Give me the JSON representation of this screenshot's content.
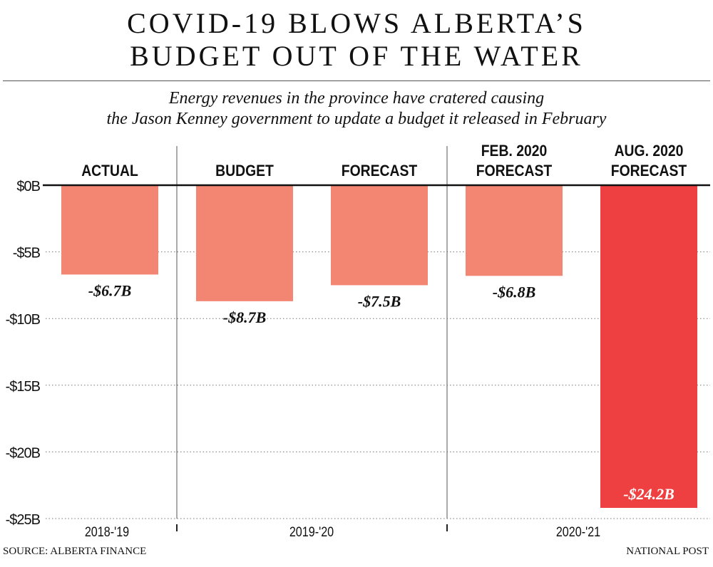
{
  "title_lines": [
    "COVID-19 BLOWS ALBERTA’S",
    "BUDGET OUT OF THE WATER"
  ],
  "subtitle_lines": [
    "Energy revenues in the province have cratered causing",
    "the Jason Kenney government to update a budget it released in February"
  ],
  "chart_data": {
    "type": "bar",
    "categories": [
      "ACTUAL",
      "BUDGET",
      "FORECAST",
      "FEB. 2020 FORECAST",
      "AUG. 2020 FORECAST"
    ],
    "category_lines": [
      [
        "ACTUAL"
      ],
      [
        "BUDGET"
      ],
      [
        "FORECAST"
      ],
      [
        "FEB. 2020",
        "FORECAST"
      ],
      [
        "AUG. 2020",
        "FORECAST"
      ]
    ],
    "groups": [
      {
        "label": "2018-'19",
        "members": [
          0
        ]
      },
      {
        "label": "2019-'20",
        "members": [
          1,
          2
        ]
      },
      {
        "label": "2020-'21",
        "members": [
          3,
          4
        ]
      }
    ],
    "values": [
      -6.7,
      -8.7,
      -7.5,
      -6.8,
      -24.2
    ],
    "data_labels": [
      "-$6.7B",
      "-$8.7B",
      "-$7.5B",
      "-$6.8B",
      "-$24.2B"
    ],
    "colors": [
      "#f28673",
      "#f28673",
      "#f28673",
      "#f28673",
      "#ee4040"
    ],
    "ylim": [
      -25,
      0
    ],
    "yticks": [
      0,
      -5,
      -10,
      -15,
      -20,
      -25
    ],
    "ytick_labels": [
      "$0B",
      "-$5B",
      "-$10B",
      "-$15B",
      "-$20B",
      "-$25B"
    ],
    "grid": true
  },
  "footer": {
    "source": "SOURCE: ALBERTA FINANCE",
    "credit": "NATIONAL POST"
  }
}
